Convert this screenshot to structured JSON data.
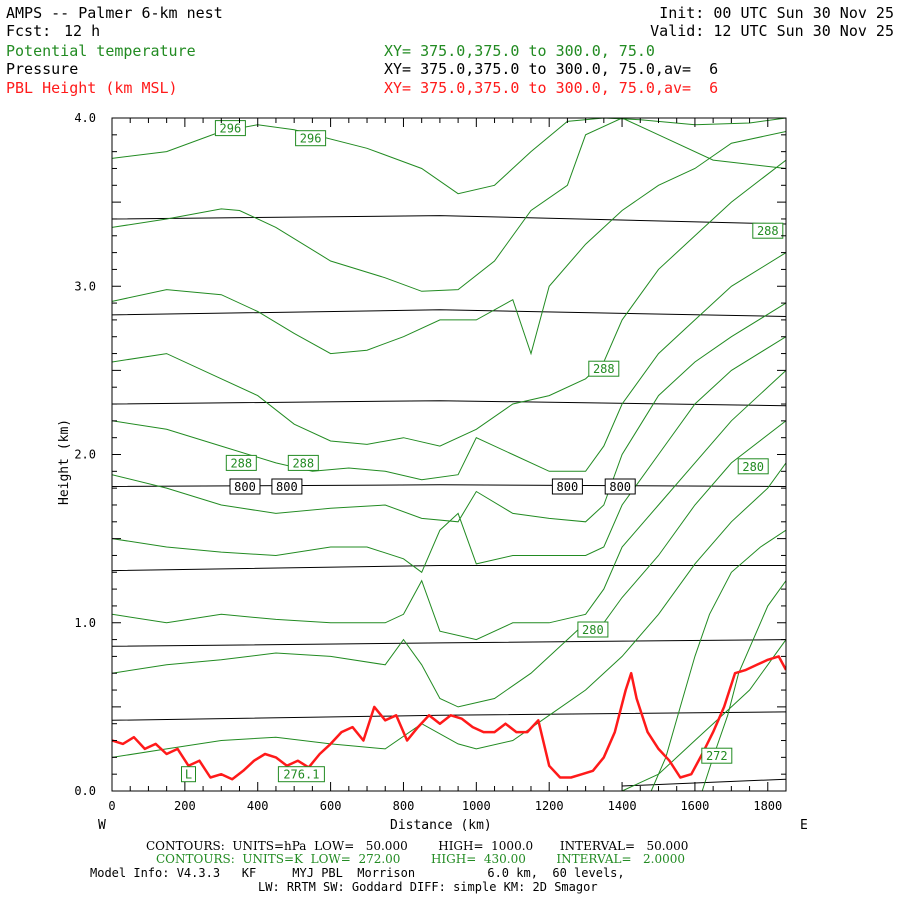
{
  "header": {
    "title": "AMPS -- Palmer 6-km nest",
    "fcst_label": "Fcst:",
    "fcst_value": "12 h",
    "init": "Init: 00 UTC Sun 30 Nov 25",
    "valid": "Valid: 12 UTC Sun 30 Nov 25",
    "fields": [
      {
        "name": "Potential temperature",
        "xy": "XY= 375.0,375.0 to 300.0, 75.0",
        "color": "#228b22"
      },
      {
        "name": "Pressure",
        "xy": "XY= 375.0,375.0 to 300.0, 75.0,av=  6",
        "color": "#000000"
      },
      {
        "name": "PBL Height (km MSL)",
        "xy": "XY= 375.0,375.0 to 300.0, 75.0,av=  6",
        "color": "#ff1a1a"
      }
    ]
  },
  "footer": {
    "line1": "CONTOURS:  UNITS=hPa  LOW=   50.000        HIGH=  1000.0       INTERVAL=   50.000",
    "line2": "CONTOURS:  UNITS=K  LOW=  272.00        HIGH=  430.00        INTERVAL=   2.0000",
    "line3": "Model Info: V4.3.3   KF     MYJ PBL  Morrison          6.0 km,  60 levels,",
    "line4": "LW: RRTM SW: Goddard DIFF: simple KM: 2D Smagor"
  },
  "chart_data": {
    "type": "line",
    "title": "AMPS -- Palmer 6-km nest",
    "xlabel": "Distance (km)",
    "ylabel": "Height (km)",
    "xlim": [
      0,
      1850
    ],
    "ylim": [
      0.0,
      4.0
    ],
    "x_ticks": [
      0,
      200,
      400,
      600,
      800,
      1000,
      1200,
      1400,
      1600,
      1800
    ],
    "y_ticks": [
      0.0,
      1.0,
      2.0,
      3.0,
      4.0
    ],
    "y_tick_labels": [
      "0.0",
      "1.0",
      "2.0",
      "3.0",
      "4.0"
    ],
    "direction_left": "W",
    "direction_right": "E",
    "colors": {
      "theta": "#228b22",
      "pressure": "#000000",
      "pbl": "#ff1a1a"
    },
    "pressure_isobars": {
      "units": "hPa",
      "lines": [
        {
          "x": [
            0,
            900,
            1850
          ],
          "y": [
            3.4,
            3.42,
            3.37
          ]
        },
        {
          "x": [
            0,
            900,
            1850
          ],
          "y": [
            2.83,
            2.86,
            2.82
          ]
        },
        {
          "x": [
            0,
            900,
            1850
          ],
          "y": [
            2.3,
            2.32,
            2.29
          ]
        },
        {
          "x": [
            0,
            900,
            1850
          ],
          "y": [
            1.81,
            1.82,
            1.81
          ]
        },
        {
          "x": [
            0,
            900,
            1850
          ],
          "y": [
            1.31,
            1.34,
            1.34
          ]
        },
        {
          "x": [
            0,
            900,
            1850
          ],
          "y": [
            0.86,
            0.88,
            0.9
          ]
        },
        {
          "x": [
            0,
            900,
            1850
          ],
          "y": [
            0.42,
            0.45,
            0.47
          ]
        },
        {
          "x": [
            1400,
            1850
          ],
          "y": [
            0.03,
            0.07
          ]
        }
      ],
      "labels": [
        {
          "text": "800",
          "x": 365,
          "y": 1.81
        },
        {
          "text": "800",
          "x": 480,
          "y": 1.81
        },
        {
          "text": "800",
          "x": 1250,
          "y": 1.81
        },
        {
          "text": "800",
          "x": 1395,
          "y": 1.81
        }
      ]
    },
    "theta_contours": {
      "units": "K",
      "lines": [
        {
          "x": [
            0,
            150,
            300,
            400,
            500,
            700,
            850,
            950,
            1050,
            1150,
            1250,
            1350,
            1450,
            1600,
            1750,
            1850
          ],
          "y": [
            3.76,
            3.8,
            3.92,
            3.96,
            3.93,
            3.82,
            3.7,
            3.55,
            3.6,
            3.8,
            3.98,
            4.0,
            3.99,
            3.96,
            3.97,
            4.0
          ]
        },
        {
          "x": [
            0,
            150,
            300,
            350,
            450,
            600,
            750,
            850,
            950,
            1050,
            1150,
            1250,
            1300,
            1400,
            1500,
            1650,
            1850
          ],
          "y": [
            3.35,
            3.4,
            3.46,
            3.45,
            3.35,
            3.15,
            3.05,
            2.97,
            2.98,
            3.15,
            3.45,
            3.6,
            3.9,
            4.0,
            3.9,
            3.75,
            3.7
          ]
        },
        {
          "x": [
            0,
            150,
            300,
            400,
            500,
            600,
            700,
            800,
            900,
            1000,
            1100,
            1150,
            1200,
            1300,
            1400,
            1500,
            1600,
            1700,
            1850
          ],
          "y": [
            2.91,
            2.98,
            2.95,
            2.85,
            2.72,
            2.6,
            2.62,
            2.7,
            2.8,
            2.8,
            2.92,
            2.6,
            3.0,
            3.25,
            3.45,
            3.6,
            3.7,
            3.85,
            3.92
          ]
        },
        {
          "x": [
            0,
            150,
            300,
            400,
            500,
            600,
            700,
            800,
            900,
            1000,
            1100,
            1200,
            1300,
            1350,
            1400,
            1500,
            1600,
            1700,
            1850
          ],
          "y": [
            2.55,
            2.6,
            2.45,
            2.35,
            2.18,
            2.08,
            2.06,
            2.1,
            2.05,
            2.15,
            2.3,
            2.35,
            2.45,
            2.55,
            2.8,
            3.1,
            3.3,
            3.5,
            3.75
          ]
        },
        {
          "x": [
            0,
            150,
            300,
            450,
            550,
            650,
            750,
            850,
            950,
            1000,
            1100,
            1200,
            1300,
            1350,
            1400,
            1500,
            1600,
            1700,
            1850
          ],
          "y": [
            2.2,
            2.15,
            2.05,
            1.95,
            1.9,
            1.92,
            1.9,
            1.85,
            1.88,
            2.1,
            2.0,
            1.9,
            1.9,
            2.05,
            2.3,
            2.6,
            2.8,
            3.0,
            3.2
          ]
        },
        {
          "x": [
            0,
            150,
            300,
            450,
            600,
            750,
            850,
            950,
            1000,
            1100,
            1200,
            1300,
            1350,
            1400,
            1500,
            1600,
            1700,
            1850
          ],
          "y": [
            1.88,
            1.8,
            1.7,
            1.65,
            1.68,
            1.7,
            1.62,
            1.6,
            1.78,
            1.65,
            1.62,
            1.6,
            1.7,
            2.0,
            2.35,
            2.55,
            2.7,
            2.9
          ]
        },
        {
          "x": [
            0,
            150,
            300,
            450,
            600,
            700,
            800,
            850,
            900,
            950,
            1000,
            1100,
            1200,
            1300,
            1350,
            1400,
            1500,
            1600,
            1700,
            1850
          ],
          "y": [
            1.5,
            1.45,
            1.42,
            1.4,
            1.45,
            1.45,
            1.38,
            1.3,
            1.55,
            1.65,
            1.35,
            1.4,
            1.4,
            1.4,
            1.45,
            1.7,
            2.0,
            2.3,
            2.5,
            2.7
          ]
        },
        {
          "x": [
            0,
            150,
            300,
            450,
            600,
            750,
            800,
            850,
            900,
            1000,
            1100,
            1200,
            1300,
            1350,
            1400,
            1500,
            1600,
            1700,
            1850
          ],
          "y": [
            1.05,
            1.0,
            1.05,
            1.02,
            1.0,
            1.0,
            1.05,
            1.25,
            0.95,
            0.9,
            1.0,
            1.0,
            1.05,
            1.2,
            1.45,
            1.7,
            1.95,
            2.2,
            2.5
          ]
        },
        {
          "x": [
            0,
            150,
            300,
            450,
            600,
            750,
            800,
            850,
            900,
            950,
            1050,
            1150,
            1250,
            1300,
            1350,
            1400,
            1500,
            1600,
            1700,
            1850
          ],
          "y": [
            0.7,
            0.75,
            0.78,
            0.82,
            0.8,
            0.75,
            0.9,
            0.75,
            0.55,
            0.5,
            0.55,
            0.7,
            0.9,
            1.0,
            1.0,
            1.15,
            1.4,
            1.7,
            1.95,
            2.2
          ]
        },
        {
          "x": [
            0,
            150,
            300,
            450,
            600,
            750,
            850,
            950,
            1000,
            1100,
            1200,
            1300,
            1400,
            1500,
            1600,
            1700,
            1800,
            1850
          ],
          "y": [
            0.2,
            0.25,
            0.3,
            0.32,
            0.28,
            0.25,
            0.4,
            0.28,
            0.25,
            0.3,
            0.45,
            0.6,
            0.8,
            1.05,
            1.35,
            1.6,
            1.8,
            1.95
          ]
        },
        {
          "x": [
            1480,
            1520,
            1560,
            1600,
            1640,
            1700,
            1780,
            1850
          ],
          "y": [
            0.0,
            0.2,
            0.5,
            0.8,
            1.05,
            1.3,
            1.45,
            1.55
          ]
        },
        {
          "x": [
            1620,
            1650,
            1690,
            1720,
            1760,
            1800,
            1850
          ],
          "y": [
            0.0,
            0.2,
            0.45,
            0.7,
            0.9,
            1.1,
            1.25
          ]
        },
        {
          "x": [
            1400,
            1450,
            1500,
            1550,
            1600,
            1650,
            1700,
            1750,
            1800,
            1850
          ],
          "y": [
            0.0,
            0.05,
            0.1,
            0.2,
            0.3,
            0.4,
            0.5,
            0.6,
            0.75,
            0.9
          ]
        }
      ],
      "labels": [
        {
          "text": "296",
          "x": 325,
          "y": 3.94
        },
        {
          "text": "296",
          "x": 545,
          "y": 3.88
        },
        {
          "text": "288",
          "x": 1800,
          "y": 3.33
        },
        {
          "text": "288",
          "x": 1350,
          "y": 2.51
        },
        {
          "text": "288",
          "x": 355,
          "y": 1.95
        },
        {
          "text": "288",
          "x": 525,
          "y": 1.95
        },
        {
          "text": "280",
          "x": 1760,
          "y": 1.93
        },
        {
          "text": "280",
          "x": 1320,
          "y": 0.96
        },
        {
          "text": "272",
          "x": 1660,
          "y": 0.21
        },
        {
          "text": "276.1",
          "x": 520,
          "y": 0.1
        },
        {
          "text": "L",
          "x": 210,
          "y": 0.1
        }
      ]
    },
    "pbl_height": {
      "name": "PBL Height (km MSL)",
      "x": [
        0,
        30,
        60,
        90,
        120,
        150,
        180,
        210,
        240,
        270,
        300,
        330,
        360,
        390,
        420,
        450,
        480,
        510,
        540,
        570,
        600,
        630,
        660,
        690,
        720,
        750,
        780,
        810,
        840,
        870,
        900,
        930,
        960,
        990,
        1020,
        1050,
        1080,
        1110,
        1140,
        1170,
        1200,
        1230,
        1260,
        1290,
        1320,
        1350,
        1380,
        1410,
        1425,
        1440,
        1470,
        1500,
        1530,
        1560,
        1590,
        1620,
        1650,
        1680,
        1710,
        1740,
        1770,
        1800,
        1830,
        1850
      ],
      "y": [
        0.3,
        0.28,
        0.32,
        0.25,
        0.28,
        0.22,
        0.25,
        0.15,
        0.18,
        0.08,
        0.1,
        0.07,
        0.12,
        0.18,
        0.22,
        0.2,
        0.15,
        0.18,
        0.14,
        0.22,
        0.28,
        0.35,
        0.38,
        0.3,
        0.5,
        0.42,
        0.45,
        0.3,
        0.38,
        0.45,
        0.4,
        0.45,
        0.43,
        0.38,
        0.35,
        0.35,
        0.4,
        0.35,
        0.35,
        0.42,
        0.15,
        0.08,
        0.08,
        0.1,
        0.12,
        0.2,
        0.35,
        0.6,
        0.7,
        0.55,
        0.35,
        0.25,
        0.18,
        0.08,
        0.1,
        0.22,
        0.35,
        0.5,
        0.7,
        0.72,
        0.75,
        0.78,
        0.8,
        0.72
      ]
    }
  }
}
